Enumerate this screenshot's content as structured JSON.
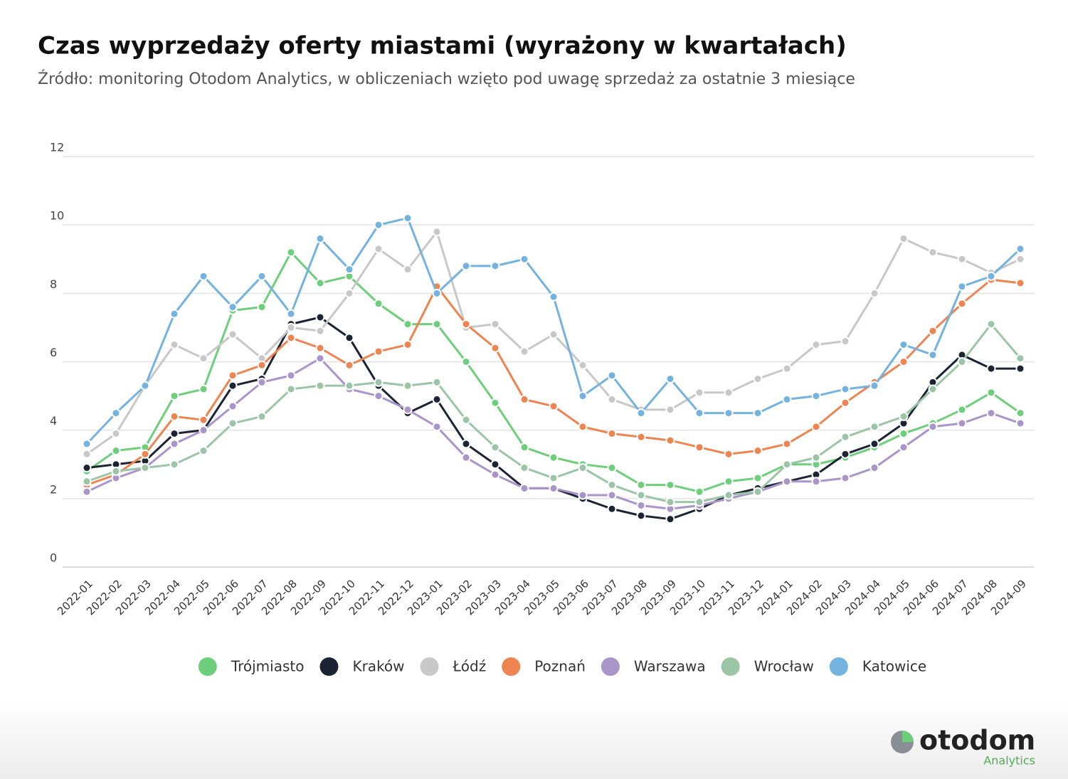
{
  "chart_data": {
    "type": "line",
    "title": "Czas wyprzedaży oferty miastami (wyrażony w kwartałach)",
    "subtitle": "Źródło: monitoring Otodom Analytics, w obliczeniach wzięto pod uwagę sprzedaż za ostatnie 3 miesiące",
    "categories": [
      "2022-01",
      "2022-02",
      "2022-03",
      "2022-04",
      "2022-05",
      "2022-06",
      "2022-07",
      "2022-08",
      "2022-09",
      "2022-10",
      "2022-11",
      "2022-12",
      "2023-01",
      "2023-02",
      "2023-03",
      "2023-04",
      "2023-05",
      "2023-06",
      "2023-07",
      "2023-08",
      "2023-09",
      "2023-10",
      "2023-11",
      "2023-12",
      "2024-01",
      "2024-02",
      "2024-03",
      "2024-04",
      "2024-05",
      "2024-06",
      "2024-07",
      "2024-08",
      "2024-09"
    ],
    "series": [
      {
        "name": "Trójmiasto",
        "color": "#6dcf7b",
        "values": [
          2.8,
          3.4,
          3.5,
          5.0,
          5.2,
          7.5,
          7.6,
          9.2,
          8.3,
          8.5,
          7.7,
          7.1,
          7.1,
          6.0,
          4.8,
          3.5,
          3.2,
          3.0,
          2.9,
          2.4,
          2.4,
          2.2,
          2.5,
          2.6,
          3.0,
          3.0,
          3.2,
          3.5,
          3.9,
          4.2,
          4.6,
          5.1,
          4.5
        ]
      },
      {
        "name": "Kraków",
        "color": "#1c2434",
        "values": [
          2.9,
          3.0,
          3.1,
          3.9,
          4.0,
          5.3,
          5.5,
          7.1,
          7.3,
          6.7,
          5.3,
          4.5,
          4.9,
          3.6,
          3.0,
          2.3,
          2.3,
          2.0,
          1.7,
          1.5,
          1.4,
          1.7,
          2.1,
          2.3,
          2.5,
          2.7,
          3.3,
          3.6,
          4.2,
          5.4,
          6.2,
          5.8,
          5.8
        ]
      },
      {
        "name": "Łódź",
        "color": "#c8c8c8",
        "values": [
          3.3,
          3.9,
          5.3,
          6.5,
          6.1,
          6.8,
          6.1,
          7.0,
          6.9,
          8.0,
          9.3,
          8.7,
          9.8,
          7.0,
          7.1,
          6.3,
          6.8,
          5.9,
          4.9,
          4.6,
          4.6,
          5.1,
          5.1,
          5.5,
          5.8,
          6.5,
          6.6,
          8.0,
          9.6,
          9.2,
          9.0,
          8.6,
          9.0
        ]
      },
      {
        "name": "Poznań",
        "color": "#ee8450",
        "values": [
          2.4,
          2.7,
          3.3,
          4.4,
          4.3,
          5.6,
          5.9,
          6.7,
          6.4,
          5.9,
          6.3,
          6.5,
          8.2,
          7.1,
          6.4,
          4.9,
          4.7,
          4.1,
          3.9,
          3.8,
          3.7,
          3.5,
          3.3,
          3.4,
          3.6,
          4.1,
          4.8,
          5.4,
          6.0,
          6.9,
          7.7,
          8.4,
          8.3
        ]
      },
      {
        "name": "Warszawa",
        "color": "#a995c9",
        "values": [
          2.2,
          2.6,
          2.9,
          3.6,
          4.0,
          4.7,
          5.4,
          5.6,
          6.1,
          5.2,
          5.0,
          4.6,
          4.1,
          3.2,
          2.7,
          2.3,
          2.3,
          2.1,
          2.1,
          1.8,
          1.7,
          1.8,
          2.0,
          2.2,
          2.5,
          2.5,
          2.6,
          2.9,
          3.5,
          4.1,
          4.2,
          4.5,
          4.2
        ]
      },
      {
        "name": "Wrocław",
        "color": "#9cc5a8",
        "values": [
          2.5,
          2.8,
          2.9,
          3.0,
          3.4,
          4.2,
          4.4,
          5.2,
          5.3,
          5.3,
          5.4,
          5.3,
          5.4,
          4.3,
          3.5,
          2.9,
          2.6,
          2.9,
          2.4,
          2.1,
          1.9,
          1.9,
          2.1,
          2.2,
          3.0,
          3.2,
          3.8,
          4.1,
          4.4,
          5.2,
          6.0,
          7.1,
          6.1
        ]
      },
      {
        "name": "Katowice",
        "color": "#74b3e0",
        "values": [
          3.6,
          4.5,
          5.3,
          7.4,
          8.5,
          7.6,
          8.5,
          7.4,
          9.6,
          8.7,
          10.0,
          10.2,
          8.0,
          8.8,
          8.8,
          9.0,
          7.9,
          5.0,
          5.6,
          4.5,
          5.5,
          4.5,
          4.5,
          4.5,
          4.9,
          5.0,
          5.2,
          5.3,
          6.5,
          6.2,
          8.2,
          8.5,
          9.3
        ]
      }
    ],
    "ylim": [
      0,
      12
    ],
    "yticks": [
      0,
      2,
      4,
      6,
      8,
      10,
      12
    ],
    "grid": true,
    "legend": "bottom"
  },
  "branding": {
    "name": "otodom",
    "product": "Analytics"
  }
}
